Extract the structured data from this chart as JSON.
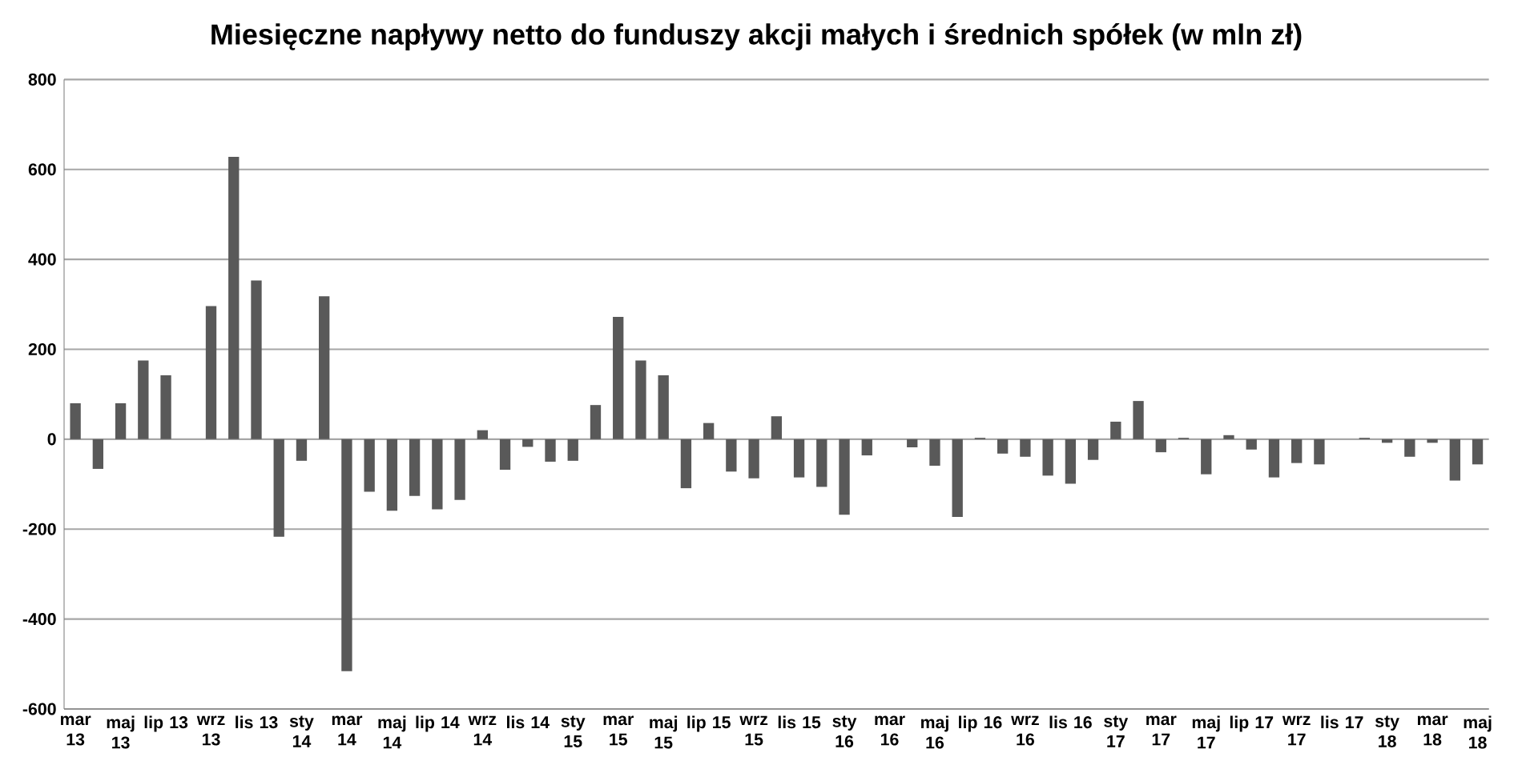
{
  "chart_data": {
    "type": "bar",
    "title": "Miesięczne napływy netto do funduszy akcji małych i średnich spółek (w mln zł)",
    "categories": [
      "mar 13",
      null,
      "maj 13",
      null,
      "lip 13",
      null,
      "wrz 13",
      null,
      "lis 13",
      null,
      "sty 14",
      null,
      "mar 14",
      null,
      "maj 14",
      null,
      "lip 14",
      null,
      "wrz 14",
      null,
      "lis 14",
      null,
      "sty 15",
      null,
      "mar 15",
      null,
      "maj 15",
      null,
      "lip 15",
      null,
      "wrz 15",
      null,
      "lis 15",
      null,
      "sty 16",
      null,
      "mar 16",
      null,
      "maj 16",
      null,
      "lip 16",
      null,
      "wrz 16",
      null,
      "lis 16",
      null,
      "sty 17",
      null,
      "mar 17",
      null,
      "maj 17",
      null,
      "lip 17",
      null,
      "wrz 17",
      null,
      "lis 17",
      null,
      "sty 18",
      null,
      "mar 18",
      null,
      "maj 18"
    ],
    "values": [
      80,
      -66,
      80,
      175,
      142,
      0,
      296,
      628,
      353,
      -217,
      -48,
      318,
      -516,
      -117,
      -159,
      -126,
      -156,
      -135,
      20,
      -68,
      -17,
      -50,
      -48,
      76,
      272,
      175,
      142,
      -109,
      36,
      -72,
      -87,
      51,
      -85,
      -106,
      -168,
      -36,
      0,
      -18,
      -59,
      -173,
      3,
      -32,
      -39,
      -81,
      -99,
      -46,
      39,
      85,
      -29,
      3,
      -78,
      9,
      -23,
      -85,
      -53,
      -56,
      0,
      3,
      -8,
      -39,
      -8,
      -92,
      -56
    ],
    "color": "#595959",
    "ylim": [
      -600,
      800
    ],
    "yticks": [
      -600,
      -400,
      -200,
      0,
      200,
      400,
      600,
      800
    ],
    "grid": "y"
  }
}
